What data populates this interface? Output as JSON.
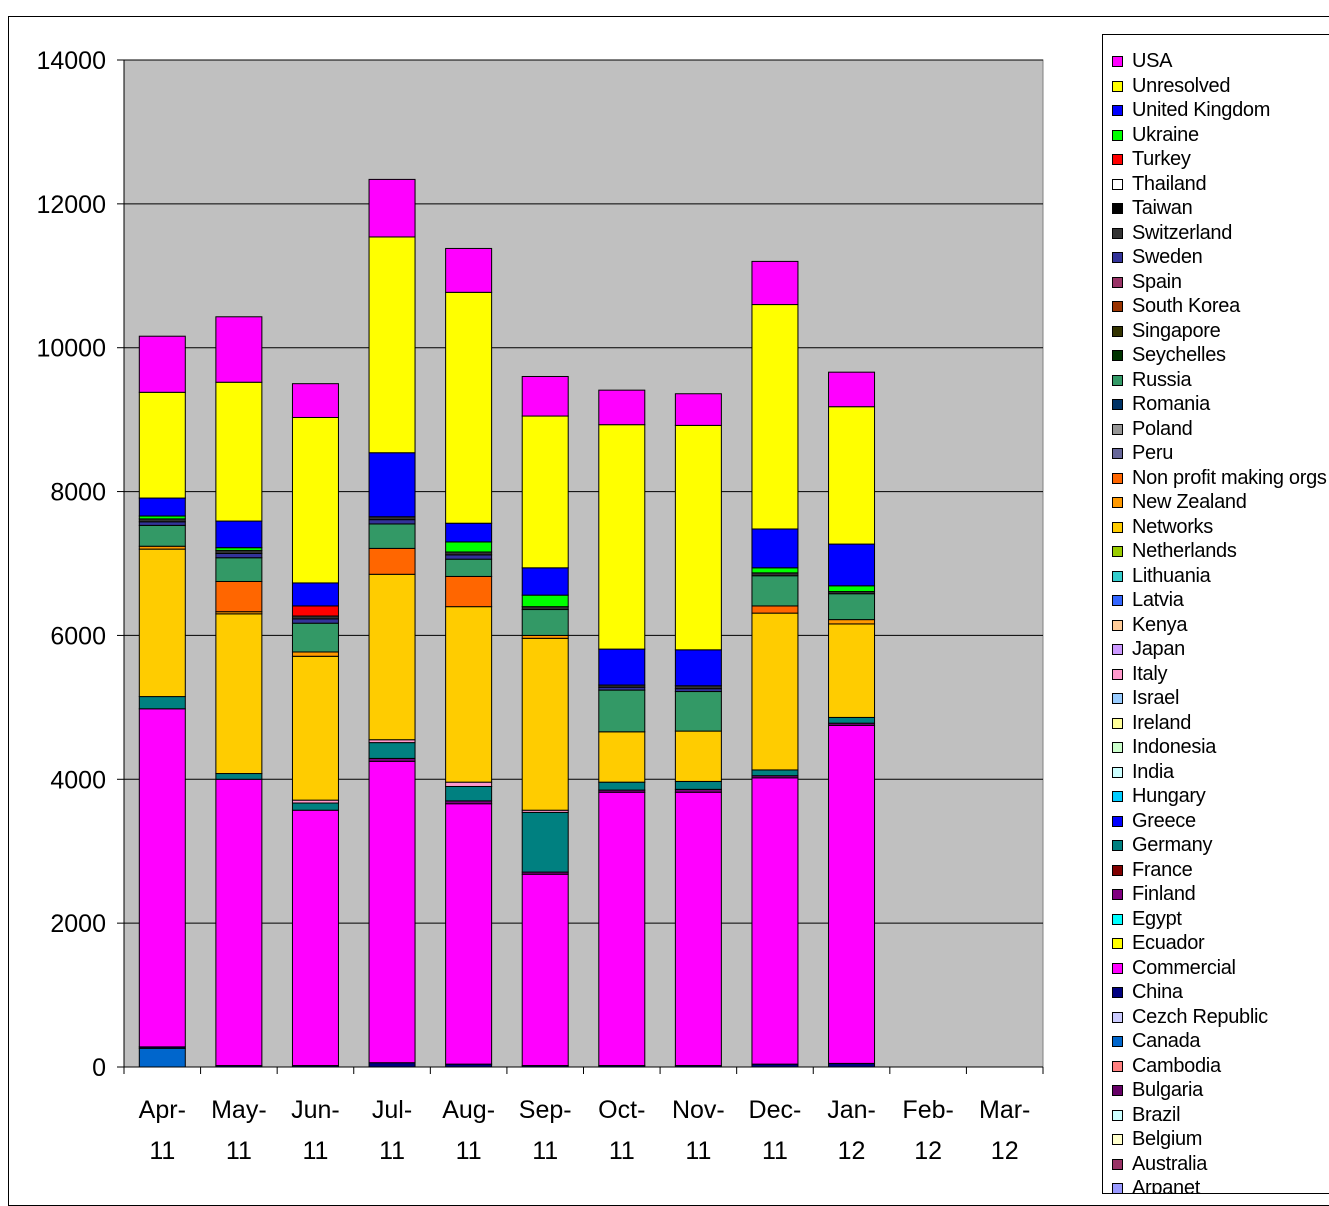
{
  "chart_data": {
    "type": "bar",
    "stacked": true,
    "title": "",
    "xlabel": "",
    "ylabel": "",
    "ylim": [
      0,
      14000
    ],
    "yticks": [
      0,
      2000,
      4000,
      6000,
      8000,
      10000,
      12000,
      14000
    ],
    "grid": true,
    "plot_background": "#C0C0C0",
    "legend_position": "right",
    "categories": [
      [
        "Apr-",
        "11"
      ],
      [
        "May-",
        "11"
      ],
      [
        "Jun-",
        "11"
      ],
      [
        "Jul-",
        "11"
      ],
      [
        "Aug-",
        "11"
      ],
      [
        "Sep-",
        "11"
      ],
      [
        "Oct-",
        "11"
      ],
      [
        "Nov-",
        "11"
      ],
      [
        "Dec-",
        "11"
      ],
      [
        "Jan-",
        "12"
      ],
      [
        "Feb-",
        "12"
      ],
      [
        "Mar-",
        "12"
      ]
    ],
    "series": [
      {
        "name": "Arpanet",
        "color": "#9999FF",
        "values": [
          0,
          0,
          0,
          0,
          0,
          0,
          0,
          0,
          0,
          0,
          0,
          0
        ]
      },
      {
        "name": "Australia",
        "color": "#993366",
        "values": [
          0,
          0,
          0,
          0,
          0,
          0,
          0,
          0,
          0,
          0,
          0,
          0
        ]
      },
      {
        "name": "Belgium",
        "color": "#FFFFCC",
        "values": [
          0,
          0,
          0,
          0,
          0,
          0,
          0,
          0,
          0,
          0,
          0,
          0
        ]
      },
      {
        "name": "Brazil",
        "color": "#CCFFFF",
        "values": [
          0,
          0,
          0,
          0,
          0,
          0,
          0,
          0,
          0,
          0,
          0,
          0
        ]
      },
      {
        "name": "Bulgaria",
        "color": "#660066",
        "values": [
          0,
          0,
          0,
          0,
          0,
          0,
          0,
          0,
          0,
          0,
          0,
          0
        ]
      },
      {
        "name": "Cambodia",
        "color": "#FF8080",
        "values": [
          0,
          0,
          0,
          0,
          0,
          0,
          0,
          0,
          0,
          0,
          0,
          0
        ]
      },
      {
        "name": "Canada",
        "color": "#0066CC",
        "values": [
          260,
          0,
          0,
          0,
          0,
          0,
          0,
          0,
          0,
          0,
          0,
          0
        ]
      },
      {
        "name": "Cezch Republic",
        "color": "#CCCCFF",
        "values": [
          0,
          0,
          0,
          0,
          0,
          0,
          0,
          0,
          0,
          0,
          0,
          0
        ]
      },
      {
        "name": "China",
        "color": "#000080",
        "values": [
          20,
          20,
          20,
          60,
          40,
          20,
          20,
          20,
          40,
          50,
          0,
          0
        ]
      },
      {
        "name": "Commercial",
        "color": "#FF00FF",
        "values": [
          4700,
          3980,
          3550,
          4190,
          3620,
          2660,
          3800,
          3800,
          3980,
          4700,
          0,
          0
        ]
      },
      {
        "name": "Ecuador",
        "color": "#FFFF00",
        "values": [
          0,
          0,
          0,
          0,
          0,
          0,
          0,
          0,
          0,
          0,
          0,
          0
        ]
      },
      {
        "name": "Egypt",
        "color": "#00FFFF",
        "values": [
          0,
          0,
          0,
          0,
          0,
          0,
          0,
          0,
          0,
          0,
          0,
          0
        ]
      },
      {
        "name": "Finland",
        "color": "#800080",
        "values": [
          0,
          0,
          0,
          40,
          40,
          30,
          30,
          40,
          30,
          30,
          0,
          0
        ]
      },
      {
        "name": "France",
        "color": "#800000",
        "values": [
          0,
          0,
          0,
          0,
          0,
          0,
          0,
          0,
          0,
          0,
          0,
          0
        ]
      },
      {
        "name": "Germany",
        "color": "#008080",
        "values": [
          170,
          80,
          100,
          220,
          200,
          830,
          110,
          110,
          80,
          80,
          0,
          0
        ]
      },
      {
        "name": "Greece",
        "color": "#0000FF",
        "values": [
          0,
          0,
          0,
          0,
          0,
          0,
          0,
          0,
          0,
          0,
          0,
          0
        ]
      },
      {
        "name": "Hungary",
        "color": "#00CCFF",
        "values": [
          0,
          0,
          0,
          0,
          0,
          0,
          0,
          0,
          0,
          0,
          0,
          0
        ]
      },
      {
        "name": "India",
        "color": "#CCFFFF",
        "values": [
          0,
          0,
          0,
          0,
          0,
          0,
          0,
          0,
          0,
          0,
          0,
          0
        ]
      },
      {
        "name": "Indonesia",
        "color": "#CCFFCC",
        "values": [
          0,
          0,
          0,
          0,
          0,
          0,
          0,
          0,
          0,
          0,
          0,
          0
        ]
      },
      {
        "name": "Ireland",
        "color": "#FFFF99",
        "values": [
          0,
          0,
          0,
          0,
          0,
          0,
          0,
          0,
          0,
          0,
          0,
          0
        ]
      },
      {
        "name": "Israel",
        "color": "#99CCFF",
        "values": [
          0,
          0,
          0,
          0,
          0,
          0,
          0,
          0,
          0,
          0,
          0,
          0
        ]
      },
      {
        "name": "Italy",
        "color": "#FF99CC",
        "values": [
          0,
          0,
          40,
          40,
          60,
          30,
          0,
          0,
          0,
          0,
          0,
          0
        ]
      },
      {
        "name": "Japan",
        "color": "#CC99FF",
        "values": [
          0,
          0,
          0,
          0,
          0,
          0,
          0,
          0,
          0,
          0,
          0,
          0
        ]
      },
      {
        "name": "Kenya",
        "color": "#FFCC99",
        "values": [
          0,
          0,
          0,
          0,
          0,
          0,
          0,
          0,
          0,
          0,
          0,
          0
        ]
      },
      {
        "name": "Latvia",
        "color": "#3366FF",
        "values": [
          0,
          0,
          0,
          0,
          0,
          0,
          0,
          0,
          0,
          0,
          0,
          0
        ]
      },
      {
        "name": "Lithuania",
        "color": "#33CCCC",
        "values": [
          0,
          0,
          0,
          0,
          0,
          0,
          0,
          0,
          0,
          0,
          0,
          0
        ]
      },
      {
        "name": "Netherlands",
        "color": "#99CC00",
        "values": [
          0,
          0,
          0,
          0,
          0,
          0,
          0,
          0,
          0,
          0,
          0,
          0
        ]
      },
      {
        "name": "Networks",
        "color": "#FFCC00",
        "values": [
          2050,
          2220,
          2000,
          2300,
          2440,
          2390,
          700,
          700,
          2180,
          1300,
          0,
          0
        ]
      },
      {
        "name": "New Zealand",
        "color": "#FF9900",
        "values": [
          40,
          30,
          60,
          0,
          0,
          40,
          0,
          0,
          0,
          60,
          0,
          0
        ]
      },
      {
        "name": "Non profit making orgs",
        "color": "#FF6600",
        "values": [
          0,
          420,
          0,
          360,
          420,
          0,
          0,
          0,
          100,
          0,
          0,
          0
        ]
      },
      {
        "name": "Peru",
        "color": "#666699",
        "values": [
          0,
          0,
          0,
          0,
          0,
          0,
          0,
          0,
          0,
          0,
          0,
          0
        ]
      },
      {
        "name": "Poland",
        "color": "#969696",
        "values": [
          0,
          0,
          0,
          0,
          0,
          0,
          0,
          0,
          0,
          0,
          0,
          0
        ]
      },
      {
        "name": "Romania",
        "color": "#003366",
        "values": [
          0,
          0,
          0,
          0,
          0,
          0,
          0,
          0,
          0,
          0,
          0,
          0
        ]
      },
      {
        "name": "Russia",
        "color": "#339966",
        "values": [
          290,
          330,
          400,
          340,
          240,
          360,
          580,
          550,
          420,
          360,
          0,
          0
        ]
      },
      {
        "name": "Seychelles",
        "color": "#003300",
        "values": [
          0,
          0,
          0,
          0,
          0,
          0,
          0,
          0,
          0,
          0,
          0,
          0
        ]
      },
      {
        "name": "Singapore",
        "color": "#333300",
        "values": [
          0,
          0,
          0,
          0,
          0,
          0,
          0,
          0,
          0,
          0,
          0,
          0
        ]
      },
      {
        "name": "South Korea",
        "color": "#993300",
        "values": [
          0,
          0,
          0,
          0,
          0,
          0,
          0,
          0,
          0,
          0,
          0,
          0
        ]
      },
      {
        "name": "Spain",
        "color": "#993366",
        "values": [
          0,
          0,
          0,
          0,
          0,
          0,
          0,
          0,
          0,
          0,
          0,
          0
        ]
      },
      {
        "name": "Sweden",
        "color": "#333399",
        "values": [
          50,
          60,
          60,
          60,
          60,
          0,
          40,
          40,
          0,
          0,
          0,
          0
        ]
      },
      {
        "name": "Switzerland",
        "color": "#333333",
        "values": [
          40,
          40,
          40,
          40,
          40,
          40,
          30,
          40,
          40,
          30,
          0,
          0
        ]
      },
      {
        "name": "Taiwan",
        "color": "#000000",
        "values": [
          0,
          0,
          0,
          0,
          0,
          0,
          0,
          0,
          0,
          0,
          0,
          0
        ]
      },
      {
        "name": "Thailand",
        "color": "#FFFFFF",
        "values": [
          0,
          0,
          0,
          0,
          0,
          0,
          0,
          0,
          0,
          0,
          0,
          0
        ]
      },
      {
        "name": "Turkey",
        "color": "#FF0000",
        "values": [
          0,
          0,
          140,
          0,
          0,
          0,
          0,
          0,
          0,
          0,
          0,
          0
        ]
      },
      {
        "name": "Ukraine",
        "color": "#00FF00",
        "values": [
          40,
          40,
          0,
          0,
          140,
          160,
          0,
          0,
          70,
          80,
          0,
          0
        ]
      },
      {
        "name": "United Kingdom",
        "color": "#0000FF",
        "values": [
          250,
          370,
          320,
          890,
          260,
          380,
          500,
          500,
          540,
          580,
          0,
          0
        ]
      },
      {
        "name": "Unresolved",
        "color": "#FFFF00",
        "values": [
          1470,
          1930,
          2300,
          3000,
          3210,
          2110,
          3120,
          3120,
          3120,
          1910,
          0,
          0
        ]
      },
      {
        "name": "USA",
        "color": "#FF00FF",
        "values": [
          780,
          910,
          470,
          800,
          610,
          550,
          480,
          440,
          600,
          480,
          0,
          0
        ]
      }
    ]
  }
}
